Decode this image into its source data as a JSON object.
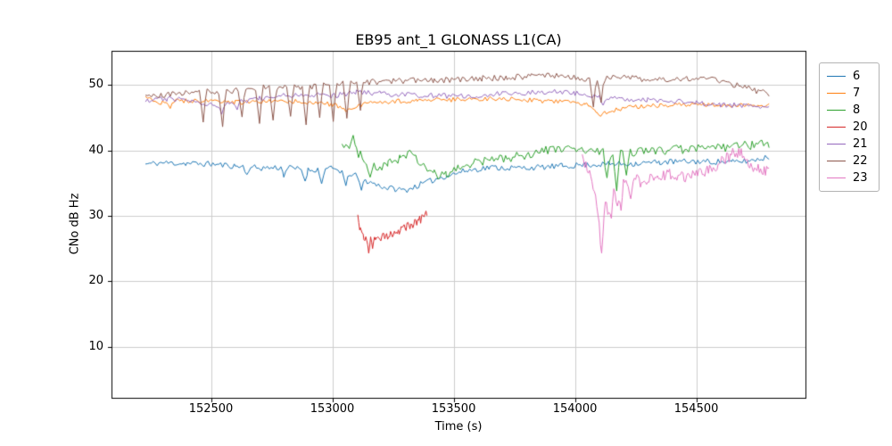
{
  "chart": {
    "title": "EB95 ant_1 GLONASS L1(CA)",
    "xlabel": "Time (s)",
    "ylabel": "CNo dB Hz"
  },
  "chart_data": {
    "type": "line",
    "title": "EB95 ant_1 GLONASS L1(CA)",
    "xlabel": "Time (s)",
    "ylabel": "CNo dB Hz",
    "xlim": [
      152090,
      154950
    ],
    "ylim": [
      2.2,
      55.2
    ],
    "x_ticks": [
      152500,
      153000,
      153500,
      154000,
      154500
    ],
    "y_ticks": [
      10,
      20,
      30,
      40,
      50
    ],
    "grid": true,
    "grid_color": "#cccccc",
    "legend_position": "outside-right",
    "noise_seed": 11,
    "series": [
      {
        "name": "6",
        "color": "#1f77b4",
        "noise": 0.45,
        "step": 8,
        "points": [
          [
            152230,
            37.9
          ],
          [
            152300,
            38.1
          ],
          [
            152400,
            38.0
          ],
          [
            152500,
            37.9
          ],
          [
            152600,
            37.6
          ],
          [
            152700,
            37.3
          ],
          [
            152800,
            37.4
          ],
          [
            152900,
            37.0
          ],
          [
            153000,
            37.2
          ],
          [
            153080,
            36.4
          ],
          [
            153150,
            35.2
          ],
          [
            153220,
            34.3
          ],
          [
            153300,
            33.9
          ],
          [
            153380,
            35.0
          ],
          [
            153450,
            35.9
          ],
          [
            153550,
            36.9
          ],
          [
            153650,
            37.4
          ],
          [
            153750,
            37.3
          ],
          [
            153850,
            37.4
          ],
          [
            153950,
            37.6
          ],
          [
            154050,
            37.8
          ],
          [
            154150,
            37.9
          ],
          [
            154250,
            38.0
          ],
          [
            154350,
            38.2
          ],
          [
            154450,
            38.3
          ],
          [
            154550,
            38.3
          ],
          [
            154650,
            38.2
          ],
          [
            154720,
            38.4
          ],
          [
            154800,
            39.0
          ]
        ],
        "spikes": [
          [
            152650,
            36.3
          ],
          [
            152800,
            35.9
          ],
          [
            152890,
            35.3
          ],
          [
            152960,
            34.9
          ],
          [
            153060,
            34.6
          ],
          [
            153120,
            33.9
          ]
        ]
      },
      {
        "name": "7",
        "color": "#ff7f0e",
        "noise": 0.35,
        "step": 8,
        "points": [
          [
            152230,
            47.9
          ],
          [
            152300,
            47.3
          ],
          [
            152400,
            47.6
          ],
          [
            152500,
            47.5
          ],
          [
            152600,
            47.3
          ],
          [
            152700,
            47.4
          ],
          [
            152800,
            47.5
          ],
          [
            152900,
            47.4
          ],
          [
            153000,
            47.0
          ],
          [
            153070,
            46.4
          ],
          [
            153150,
            47.2
          ],
          [
            153250,
            47.5
          ],
          [
            153350,
            47.6
          ],
          [
            153450,
            47.7
          ],
          [
            153550,
            47.8
          ],
          [
            153650,
            47.9
          ],
          [
            153750,
            47.8
          ],
          [
            153850,
            47.6
          ],
          [
            153950,
            47.4
          ],
          [
            154040,
            47.2
          ],
          [
            154090,
            46.0
          ],
          [
            154130,
            45.7
          ],
          [
            154180,
            46.3
          ],
          [
            154250,
            46.7
          ],
          [
            154350,
            46.9
          ],
          [
            154450,
            47.0
          ],
          [
            154550,
            47.0
          ],
          [
            154650,
            46.9
          ],
          [
            154800,
            46.8
          ]
        ],
        "spikes": [
          [
            152330,
            46.4
          ],
          [
            153060,
            45.9
          ],
          [
            154110,
            45.2
          ]
        ]
      },
      {
        "name": "8",
        "color": "#2ca02c",
        "noise": 0.7,
        "step": 8,
        "points": [
          [
            153040,
            41.2
          ],
          [
            153070,
            40.4
          ],
          [
            153100,
            39.7
          ],
          [
            153140,
            38.6
          ],
          [
            153180,
            37.1
          ],
          [
            153230,
            37.9
          ],
          [
            153280,
            38.9
          ],
          [
            153320,
            39.6
          ],
          [
            153360,
            38.0
          ],
          [
            153420,
            36.5
          ],
          [
            153470,
            36.2
          ],
          [
            153520,
            37.3
          ],
          [
            153580,
            38.1
          ],
          [
            153650,
            38.5
          ],
          [
            153720,
            38.8
          ],
          [
            153800,
            39.3
          ],
          [
            153880,
            40.0
          ],
          [
            153950,
            40.3
          ],
          [
            154020,
            40.0
          ],
          [
            154100,
            39.7
          ],
          [
            154180,
            39.4
          ],
          [
            154260,
            39.8
          ],
          [
            154340,
            40.0
          ],
          [
            154420,
            40.1
          ],
          [
            154500,
            40.2
          ],
          [
            154580,
            40.3
          ],
          [
            154660,
            40.6
          ],
          [
            154730,
            40.8
          ],
          [
            154800,
            41.0
          ]
        ],
        "spikes": [
          [
            153090,
            42.3
          ],
          [
            153160,
            35.9
          ],
          [
            153440,
            35.6
          ],
          [
            154130,
            35.8
          ],
          [
            154170,
            33.8
          ],
          [
            154210,
            36.2
          ]
        ]
      },
      {
        "name": "20",
        "color": "#d62728",
        "noise": 0.6,
        "step": 4,
        "points": [
          [
            153105,
            29.6
          ],
          [
            153115,
            27.8
          ],
          [
            153130,
            26.4
          ],
          [
            153150,
            26.2
          ],
          [
            153180,
            26.6
          ],
          [
            153220,
            26.9
          ],
          [
            153260,
            27.4
          ],
          [
            153300,
            28.2
          ],
          [
            153340,
            28.9
          ],
          [
            153370,
            29.6
          ],
          [
            153390,
            30.3
          ]
        ],
        "spikes": [
          [
            153150,
            24.3
          ],
          [
            153165,
            25.0
          ]
        ]
      },
      {
        "name": "21",
        "color": "#9467bd",
        "noise": 0.4,
        "step": 8,
        "points": [
          [
            152230,
            47.6
          ],
          [
            152320,
            47.9
          ],
          [
            152420,
            47.6
          ],
          [
            152520,
            46.9
          ],
          [
            152600,
            47.4
          ],
          [
            152700,
            47.9
          ],
          [
            152800,
            48.3
          ],
          [
            152900,
            48.5
          ],
          [
            153000,
            48.3
          ],
          [
            153100,
            48.9
          ],
          [
            153200,
            48.7
          ],
          [
            153300,
            48.5
          ],
          [
            153400,
            48.4
          ],
          [
            153500,
            48.3
          ],
          [
            153600,
            48.4
          ],
          [
            153700,
            48.7
          ],
          [
            153800,
            48.8
          ],
          [
            153900,
            49.0
          ],
          [
            154000,
            48.7
          ],
          [
            154100,
            48.2
          ],
          [
            154200,
            47.9
          ],
          [
            154300,
            47.7
          ],
          [
            154400,
            47.5
          ],
          [
            154500,
            47.2
          ],
          [
            154600,
            47.0
          ],
          [
            154700,
            46.8
          ],
          [
            154800,
            46.5
          ]
        ],
        "spikes": [
          [
            152545,
            45.5
          ],
          [
            152610,
            46.2
          ],
          [
            154120,
            46.9
          ]
        ]
      },
      {
        "name": "22",
        "color": "#8c564b",
        "noise": 0.45,
        "step": 8,
        "points": [
          [
            152230,
            48.0
          ],
          [
            152300,
            48.4
          ],
          [
            152380,
            48.8
          ],
          [
            152460,
            49.0
          ],
          [
            152540,
            48.9
          ],
          [
            152620,
            49.3
          ],
          [
            152700,
            49.6
          ],
          [
            152780,
            49.5
          ],
          [
            152860,
            49.7
          ],
          [
            152940,
            49.8
          ],
          [
            153020,
            50.2
          ],
          [
            153120,
            50.4
          ],
          [
            153220,
            50.5
          ],
          [
            153320,
            50.7
          ],
          [
            153420,
            50.7
          ],
          [
            153520,
            50.8
          ],
          [
            153620,
            51.0
          ],
          [
            153720,
            51.1
          ],
          [
            153820,
            51.3
          ],
          [
            153900,
            51.5
          ],
          [
            153980,
            51.2
          ],
          [
            154060,
            50.8
          ],
          [
            154140,
            51.0
          ],
          [
            154220,
            51.3
          ],
          [
            154300,
            50.6
          ],
          [
            154380,
            50.8
          ],
          [
            154460,
            51.0
          ],
          [
            154540,
            50.9
          ],
          [
            154620,
            50.4
          ],
          [
            154700,
            49.6
          ],
          [
            154760,
            49.0
          ],
          [
            154800,
            48.6
          ]
        ],
        "spikes": [
          [
            152470,
            44.3
          ],
          [
            152550,
            43.6
          ],
          [
            152630,
            45.1
          ],
          [
            152700,
            44.1
          ],
          [
            152760,
            44.6
          ],
          [
            152830,
            45.2
          ],
          [
            152890,
            43.9
          ],
          [
            152945,
            45.0
          ],
          [
            153005,
            44.4
          ],
          [
            153060,
            44.9
          ],
          [
            153115,
            46.1
          ],
          [
            154075,
            46.6
          ],
          [
            154105,
            47.3
          ]
        ]
      },
      {
        "name": "23",
        "color": "#e377c2",
        "noise": 0.9,
        "step": 5,
        "points": [
          [
            154030,
            38.6
          ],
          [
            154055,
            37.4
          ],
          [
            154075,
            34.5
          ],
          [
            154095,
            30.5
          ],
          [
            154110,
            25.0
          ],
          [
            154125,
            32.0
          ],
          [
            154140,
            30.5
          ],
          [
            154160,
            33.5
          ],
          [
            154180,
            32.0
          ],
          [
            154200,
            35.5
          ],
          [
            154220,
            34.0
          ],
          [
            154245,
            35.8
          ],
          [
            154270,
            35.0
          ],
          [
            154300,
            35.6
          ],
          [
            154340,
            36.1
          ],
          [
            154380,
            36.4
          ],
          [
            154420,
            36.0
          ],
          [
            154460,
            35.7
          ],
          [
            154500,
            36.3
          ],
          [
            154540,
            36.9
          ],
          [
            154580,
            37.6
          ],
          [
            154620,
            38.6
          ],
          [
            154655,
            39.6
          ],
          [
            154680,
            39.9
          ],
          [
            154710,
            38.6
          ],
          [
            154740,
            37.4
          ],
          [
            154770,
            37.0
          ],
          [
            154800,
            37.1
          ]
        ],
        "spikes": [
          [
            154112,
            24.3
          ],
          [
            154150,
            29.6
          ],
          [
            154190,
            30.8
          ],
          [
            154232,
            32.6
          ]
        ]
      }
    ]
  }
}
